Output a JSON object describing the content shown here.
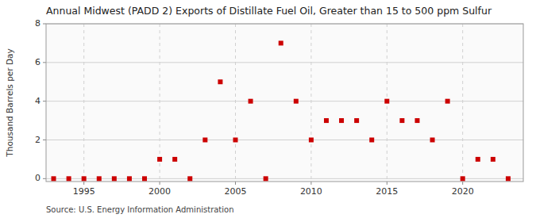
{
  "chart_data": {
    "type": "scatter",
    "title": "Annual Midwest (PADD 2) Exports of Distillate Fuel Oil, Greater than 15 to 500 ppm Sulfur",
    "y_label": "Thousand Barrels per Day",
    "source": "Source: U.S. Energy Information Administration",
    "x": [
      1993,
      1994,
      1995,
      1996,
      1997,
      1998,
      1999,
      2000,
      2001,
      2002,
      2003,
      2004,
      2005,
      2006,
      2007,
      2008,
      2009,
      2010,
      2011,
      2012,
      2013,
      2014,
      2015,
      2016,
      2017,
      2018,
      2019,
      2020,
      2021,
      2022,
      2023
    ],
    "values": [
      0.0,
      0.0,
      0.0,
      0.0,
      0.0,
      0.0,
      0.0,
      1.0,
      1.0,
      0.0,
      2.0,
      5.0,
      2.0,
      4.0,
      0.0,
      7.0,
      4.0,
      2.0,
      3.0,
      3.0,
      3.0,
      2.0,
      4.0,
      3.0,
      3.0,
      2.0,
      4.0,
      0.0,
      1.0,
      1.0,
      0.0
    ],
    "color": "#cc0000",
    "marker": "square",
    "xlim": [
      1992.5,
      2024
    ],
    "ylim": [
      -0.15,
      8
    ],
    "xticks": [
      1995,
      2000,
      2005,
      2010,
      2015,
      2020
    ],
    "yticks": [
      0,
      2,
      4,
      6,
      8
    ],
    "grid": true
  }
}
